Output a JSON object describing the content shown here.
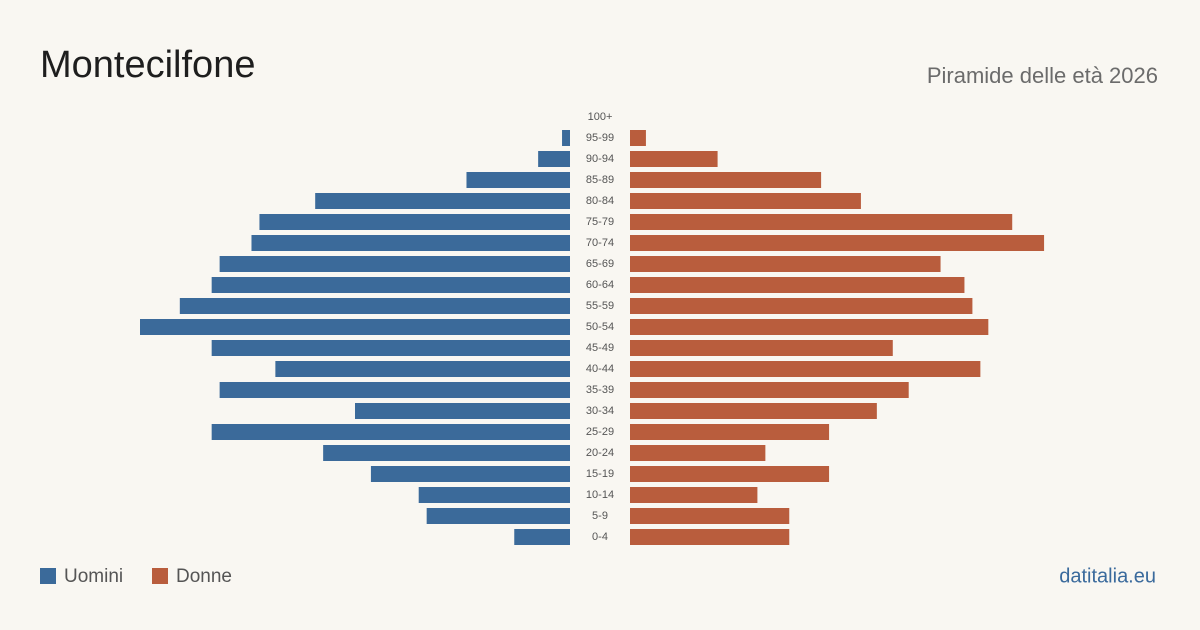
{
  "chart_data": {
    "type": "pyramid",
    "title": "Montecilfone",
    "subtitle": "Piramide delle età 2026",
    "source": "datitalia.eu",
    "categories": [
      "100+",
      "95-99",
      "90-94",
      "85-89",
      "80-84",
      "75-79",
      "70-74",
      "65-69",
      "60-64",
      "55-59",
      "50-54",
      "45-49",
      "40-44",
      "35-39",
      "30-34",
      "25-29",
      "20-24",
      "15-19",
      "10-14",
      "5-9",
      "0-4"
    ],
    "series": [
      {
        "name": "Uomini",
        "color": "#3b6a9a",
        "values": [
          0,
          1,
          4,
          13,
          32,
          39,
          40,
          44,
          45,
          49,
          54,
          45,
          37,
          44,
          27,
          45,
          31,
          25,
          19,
          18,
          7
        ]
      },
      {
        "name": "Donne",
        "color": "#b95d3d",
        "values": [
          0,
          2,
          11,
          24,
          29,
          48,
          52,
          39,
          42,
          43,
          45,
          33,
          44,
          35,
          31,
          25,
          17,
          25,
          16,
          20,
          20
        ]
      }
    ]
  }
}
